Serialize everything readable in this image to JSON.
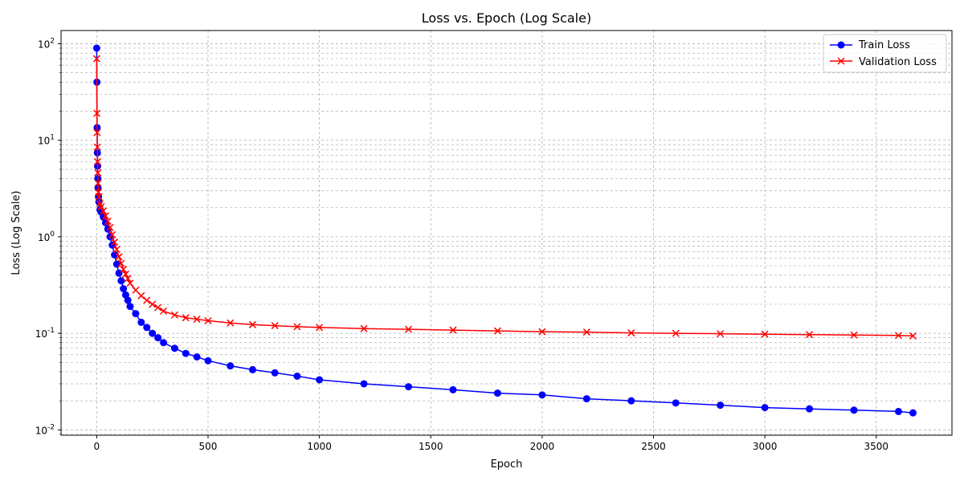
{
  "chart_data": {
    "type": "line",
    "title": "Loss vs. Epoch (Log Scale)",
    "xlabel": "Epoch",
    "ylabel": "Loss (Log Scale)",
    "xlim": [
      -160,
      3840
    ],
    "ylim": [
      0.0088,
      137
    ],
    "yscale": "log",
    "grid": true,
    "grid_style": "dashed",
    "legend_position": "top-right",
    "x_ticks": [
      0,
      500,
      1000,
      1500,
      2000,
      2500,
      3000,
      3500
    ],
    "x_tick_labels": [
      "0",
      "500",
      "1000",
      "1500",
      "2000",
      "2500",
      "3000",
      "3500"
    ],
    "y_ticks": [
      0.01,
      0.1,
      1,
      10,
      100
    ],
    "y_tick_labels": [
      "10",
      "10",
      "10",
      "10",
      "10"
    ],
    "y_tick_exponents": [
      "-2",
      "-1",
      "0",
      "1",
      "2"
    ],
    "series": [
      {
        "name": "Train Loss",
        "color": "#0000ff",
        "marker": "circle",
        "x": [
          0,
          1,
          2,
          3,
          4,
          5,
          6,
          8,
          10,
          15,
          20,
          30,
          40,
          50,
          60,
          70,
          80,
          90,
          100,
          110,
          120,
          130,
          140,
          150,
          175,
          200,
          225,
          250,
          275,
          300,
          350,
          400,
          450,
          500,
          600,
          700,
          800,
          900,
          1000,
          1200,
          1400,
          1600,
          1800,
          2000,
          2200,
          2400,
          2600,
          2800,
          3000,
          3200,
          3400,
          3600,
          3665
        ],
        "y": [
          90,
          40,
          13.5,
          7.4,
          5.4,
          4.0,
          3.2,
          2.6,
          2.3,
          1.9,
          1.8,
          1.6,
          1.4,
          1.2,
          1.0,
          0.82,
          0.65,
          0.52,
          0.42,
          0.35,
          0.29,
          0.25,
          0.22,
          0.19,
          0.16,
          0.13,
          0.115,
          0.1,
          0.09,
          0.08,
          0.07,
          0.062,
          0.057,
          0.052,
          0.046,
          0.042,
          0.039,
          0.036,
          0.033,
          0.03,
          0.028,
          0.026,
          0.024,
          0.023,
          0.021,
          0.02,
          0.019,
          0.018,
          0.017,
          0.0165,
          0.016,
          0.0155,
          0.015
        ]
      },
      {
        "name": "Validation Loss",
        "color": "#ff0000",
        "marker": "x",
        "x": [
          0,
          1,
          2,
          3,
          4,
          5,
          6,
          8,
          10,
          15,
          20,
          30,
          40,
          50,
          60,
          70,
          80,
          90,
          100,
          110,
          120,
          130,
          140,
          150,
          175,
          200,
          225,
          250,
          275,
          300,
          350,
          400,
          450,
          500,
          600,
          700,
          800,
          900,
          1000,
          1200,
          1400,
          1600,
          1800,
          2000,
          2200,
          2400,
          2600,
          2800,
          3000,
          3200,
          3400,
          3600,
          3665
        ],
        "y": [
          70,
          19,
          12,
          8.5,
          6.0,
          4.6,
          3.6,
          2.9,
          2.6,
          2.2,
          2.05,
          1.85,
          1.65,
          1.45,
          1.25,
          1.05,
          0.88,
          0.74,
          0.62,
          0.53,
          0.46,
          0.41,
          0.37,
          0.33,
          0.28,
          0.245,
          0.22,
          0.2,
          0.185,
          0.17,
          0.155,
          0.145,
          0.14,
          0.135,
          0.128,
          0.123,
          0.12,
          0.117,
          0.115,
          0.112,
          0.11,
          0.108,
          0.106,
          0.104,
          0.103,
          0.101,
          0.1,
          0.099,
          0.098,
          0.097,
          0.096,
          0.095,
          0.094
        ]
      }
    ]
  }
}
